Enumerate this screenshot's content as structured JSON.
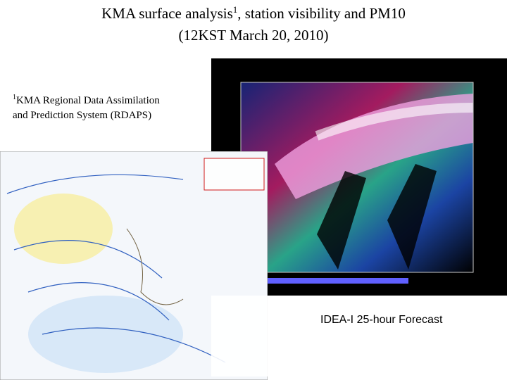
{
  "header": {
    "title_line1": "KMA surface analysis",
    "title_sup": "1",
    "title_line1_rest": ", station visibility and PM10",
    "title_line2": "(12KST March 20, 2010)"
  },
  "footnote": {
    "marker": "1",
    "text": "KMA Regional Data Assimilation and Prediction System (RDAPS)"
  },
  "caption": "IDEA-I 25-hour Forecast"
}
